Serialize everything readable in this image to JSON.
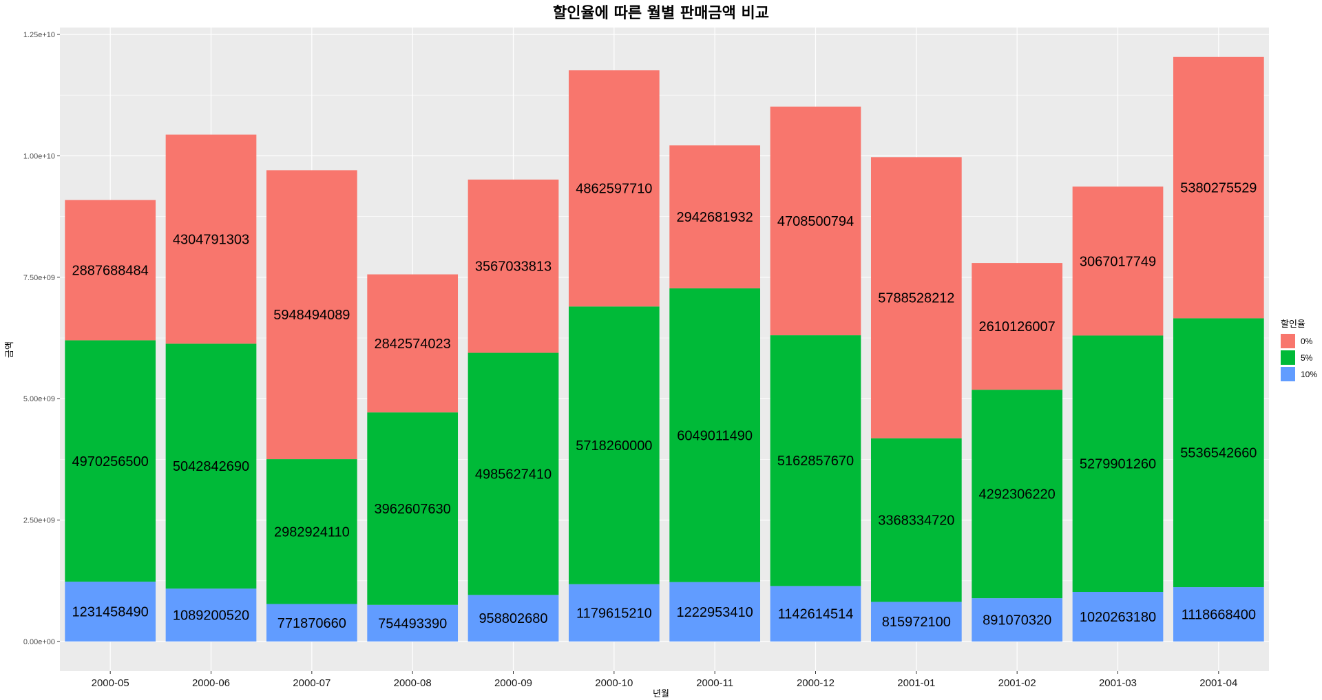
{
  "chart_data": {
    "type": "bar",
    "stacked": true,
    "title": "할인율에 따른 월별 판매금액 비교",
    "xlabel": "년월",
    "ylabel": "금액",
    "ylim": [
      0,
      12500000000
    ],
    "yticks": [
      0,
      2500000000,
      5000000000,
      7500000000,
      10000000000,
      12500000000
    ],
    "ytick_labels": [
      "0.00e+00",
      "2.50e+09",
      "5.00e+09",
      "7.50e+09",
      "1.00e+10",
      "1.25e+10"
    ],
    "categories": [
      "2000-05",
      "2000-06",
      "2000-07",
      "2000-08",
      "2000-09",
      "2000-10",
      "2000-11",
      "2000-12",
      "2001-01",
      "2001-02",
      "2001-03",
      "2001-04"
    ],
    "series": [
      {
        "name": "10%",
        "color": "#619CFF",
        "values": [
          1231458490,
          1089200520,
          771870660,
          754493390,
          958802680,
          1179615210,
          1222953410,
          1142614514,
          815972100,
          891070320,
          1020263180,
          1118668400
        ]
      },
      {
        "name": "5%",
        "color": "#00BA38",
        "values": [
          4970256500,
          5042842690,
          2982924110,
          3962607630,
          4985627410,
          5718260000,
          6049011490,
          5162857670,
          3368334720,
          4292306220,
          5279901260,
          5536542660
        ]
      },
      {
        "name": "0%",
        "color": "#F8766D",
        "values": [
          2887688484,
          4304791303,
          5948494089,
          2842574023,
          3567033813,
          4862597710,
          2942681932,
          4708500794,
          5788528212,
          2610126007,
          3067017749,
          5380275529
        ]
      }
    ],
    "legend": {
      "title": "할인율",
      "entries": [
        "0%",
        "5%",
        "10%"
      ],
      "position": "right"
    },
    "grid": true,
    "panel_background": "#EBEBEB"
  }
}
